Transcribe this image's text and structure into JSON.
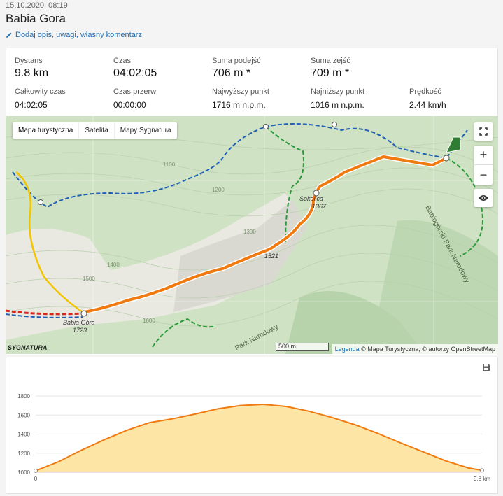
{
  "header": {
    "date": "15.10.2020, 08:19",
    "title": "Babia Gora",
    "edit_label": "Dodaj opis, uwagi, własny komentarz"
  },
  "stats": {
    "distance_label": "Dystans",
    "distance_value": "9.8 km",
    "time_label": "Czas",
    "time_value": "04:02:05",
    "ascent_label": "Suma podejść",
    "ascent_value": "706 m *",
    "descent_label": "Suma zejść",
    "descent_value": "709 m *",
    "total_time_label": "Całkowity czas",
    "total_time_value": "04:02:05",
    "pause_label": "Czas przerw",
    "pause_value": "00:00:00",
    "highest_label": "Najwyższy punkt",
    "highest_value": "1716 m n.p.m.",
    "lowest_label": "Najniższy punkt",
    "lowest_value": "1016 m n.p.m.",
    "speed_label": "Prędkość",
    "speed_value": "2.44 km/h"
  },
  "map": {
    "tabs": [
      "Mapa turystyczna",
      "Satelita",
      "Mapy Sygnatura"
    ],
    "scale_label": "500 m",
    "legend_link": "Legenda",
    "attribution": "© Mapa Turystyczna, © autorzy OpenStreetMap",
    "logo_text": "SYGNATURA",
    "labels": {
      "peak_name": "Babia Góra",
      "peak_height": "1723",
      "saddle_name": "Sokolica",
      "saddle_height": "1367",
      "point_height": "1521",
      "park_name_1": "Babiogórski Park Narodowy",
      "park_name_2": "Park Narodowy",
      "contour_1100": "1100",
      "contour_1200": "1200",
      "contour_1300": "1300",
      "contour_1400": "1400",
      "contour_1500": "1500",
      "contour_1600": "1600"
    },
    "route_color": "#f07a10"
  },
  "chart_data": {
    "type": "area",
    "x": [
      0,
      0.5,
      1,
      1.5,
      2,
      2.5,
      3,
      3.5,
      4,
      4.5,
      5,
      5.5,
      6,
      6.5,
      7,
      7.5,
      8,
      8.5,
      9,
      9.5,
      9.8
    ],
    "values": [
      1016,
      1110,
      1230,
      1340,
      1440,
      1520,
      1560,
      1610,
      1665,
      1700,
      1712,
      1690,
      1640,
      1575,
      1500,
      1410,
      1310,
      1215,
      1120,
      1045,
      1020
    ],
    "xlabel": "",
    "ylabel": "",
    "x_tick_labels": [
      "0",
      "9.8 km"
    ],
    "y_ticks": [
      1000,
      1200,
      1400,
      1600,
      1800
    ],
    "ylim": [
      1000,
      1800
    ],
    "xlim": [
      0,
      9.8
    ],
    "line_color": "#f07a10",
    "fill_color": "#fde5a6",
    "grid": true
  }
}
